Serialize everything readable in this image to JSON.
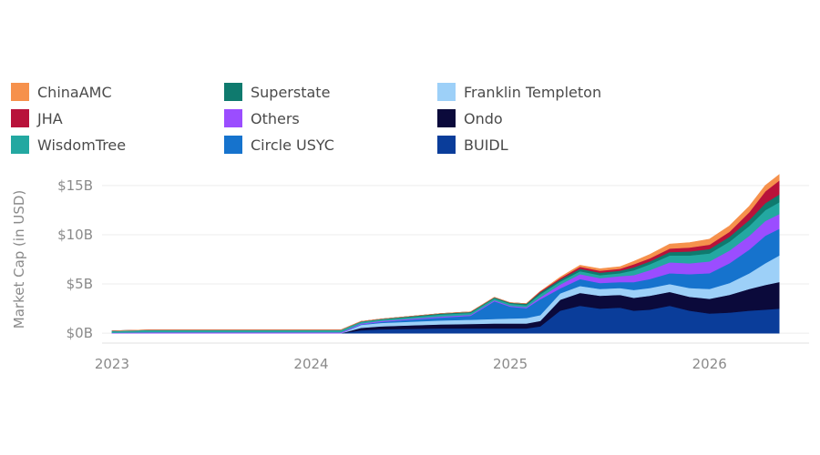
{
  "chart_data": {
    "type": "area",
    "stacked": true,
    "title": "",
    "xlabel": "",
    "ylabel": "Market Cap (in USD)",
    "x_ticks": [
      "2023",
      "2024",
      "2025",
      "2026"
    ],
    "y_ticks": [
      "$0B",
      "$5B",
      "$10B",
      "$15B"
    ],
    "y_tick_values": [
      0,
      5,
      10,
      15
    ],
    "ylim": [
      -1,
      16
    ],
    "xlim": [
      2022.95,
      2026.5
    ],
    "y_unit": "billion USD",
    "grid": "horizontal",
    "legend_position": "top",
    "x": [
      2023.0,
      2023.2,
      2023.4,
      2023.6,
      2023.8,
      2024.0,
      2024.15,
      2024.25,
      2024.35,
      2024.5,
      2024.65,
      2024.8,
      2024.92,
      2025.0,
      2025.08,
      2025.15,
      2025.25,
      2025.35,
      2025.45,
      2025.55,
      2025.62,
      2025.7,
      2025.8,
      2025.9,
      2026.0,
      2026.1,
      2026.2,
      2026.28,
      2026.35
    ],
    "series": [
      {
        "name": "BUIDL",
        "color": "#0a3d9a",
        "values": [
          0,
          0,
          0,
          0,
          0,
          0,
          0,
          0.3,
          0.4,
          0.45,
          0.5,
          0.5,
          0.5,
          0.5,
          0.5,
          0.7,
          2.3,
          2.8,
          2.5,
          2.6,
          2.3,
          2.4,
          2.8,
          2.3,
          2.0,
          2.1,
          2.3,
          2.4,
          2.5
        ]
      },
      {
        "name": "Ondo",
        "color": "#0b0a3b",
        "values": [
          0,
          0,
          0,
          0,
          0,
          0,
          0,
          0.25,
          0.3,
          0.35,
          0.4,
          0.45,
          0.5,
          0.5,
          0.5,
          0.55,
          1.1,
          1.3,
          1.3,
          1.3,
          1.3,
          1.4,
          1.4,
          1.4,
          1.5,
          1.8,
          2.2,
          2.5,
          2.7
        ]
      },
      {
        "name": "Franklin Templeton",
        "color": "#9dd0f8",
        "values": [
          0,
          0,
          0,
          0,
          0,
          0,
          0,
          0.3,
          0.35,
          0.38,
          0.4,
          0.42,
          0.45,
          0.5,
          0.55,
          0.6,
          0.65,
          0.7,
          0.7,
          0.7,
          0.8,
          0.8,
          0.8,
          0.9,
          1.0,
          1.2,
          1.6,
          2.2,
          2.7
        ]
      },
      {
        "name": "Circle USYC",
        "color": "#1673cd",
        "values": [
          0,
          0,
          0,
          0,
          0,
          0,
          0,
          0.05,
          0.1,
          0.2,
          0.3,
          0.4,
          1.8,
          1.2,
          1.0,
          1.6,
          0.5,
          0.7,
          0.6,
          0.6,
          0.8,
          0.9,
          1.1,
          1.4,
          1.6,
          2.0,
          2.4,
          2.8,
          2.7
        ]
      },
      {
        "name": "Others",
        "color": "#9b4dff",
        "values": [
          0.05,
          0.1,
          0.1,
          0.1,
          0.1,
          0.1,
          0.1,
          0.1,
          0.1,
          0.1,
          0.1,
          0.1,
          0.1,
          0.1,
          0.1,
          0.2,
          0.4,
          0.5,
          0.5,
          0.6,
          0.7,
          0.9,
          1.1,
          1.1,
          1.2,
          1.3,
          1.4,
          1.5,
          1.5
        ]
      },
      {
        "name": "WisdomTree",
        "color": "#23a8a1",
        "values": [
          0.2,
          0.25,
          0.25,
          0.25,
          0.25,
          0.25,
          0.25,
          0.15,
          0.15,
          0.15,
          0.2,
          0.2,
          0.2,
          0.2,
          0.2,
          0.3,
          0.3,
          0.3,
          0.3,
          0.3,
          0.5,
          0.6,
          0.7,
          0.8,
          0.8,
          0.9,
          1.0,
          1.1,
          1.2
        ]
      },
      {
        "name": "Superstate",
        "color": "#0f7a6e",
        "values": [
          0,
          0,
          0,
          0,
          0,
          0,
          0,
          0.05,
          0.05,
          0.1,
          0.1,
          0.1,
          0.1,
          0.1,
          0.15,
          0.2,
          0.2,
          0.25,
          0.25,
          0.25,
          0.3,
          0.3,
          0.35,
          0.4,
          0.45,
          0.5,
          0.6,
          0.7,
          0.8
        ]
      },
      {
        "name": "JHA",
        "color": "#b8123a",
        "values": [
          0,
          0,
          0,
          0,
          0,
          0,
          0,
          0,
          0,
          0,
          0,
          0,
          0,
          0,
          0,
          0.1,
          0.15,
          0.2,
          0.2,
          0.2,
          0.3,
          0.3,
          0.35,
          0.4,
          0.45,
          0.5,
          0.8,
          1.2,
          1.4
        ]
      },
      {
        "name": "ChinaAMC",
        "color": "#f6914c",
        "values": [
          0,
          0,
          0,
          0,
          0,
          0,
          0,
          0,
          0,
          0,
          0,
          0,
          0,
          0,
          0,
          0,
          0.1,
          0.15,
          0.2,
          0.2,
          0.3,
          0.4,
          0.45,
          0.5,
          0.55,
          0.6,
          0.6,
          0.6,
          0.6
        ]
      }
    ]
  },
  "legend": [
    {
      "label": "ChinaAMC",
      "color": "#f6914c"
    },
    {
      "label": "Superstate",
      "color": "#0f7a6e"
    },
    {
      "label": "Franklin Templeton",
      "color": "#9dd0f8"
    },
    {
      "label": "JHA",
      "color": "#b8123a"
    },
    {
      "label": "Others",
      "color": "#9b4dff"
    },
    {
      "label": "Ondo",
      "color": "#0b0a3b"
    },
    {
      "label": "WisdomTree",
      "color": "#23a8a1"
    },
    {
      "label": "Circle USYC",
      "color": "#1673cd"
    },
    {
      "label": "BUIDL",
      "color": "#0a3d9a"
    }
  ]
}
